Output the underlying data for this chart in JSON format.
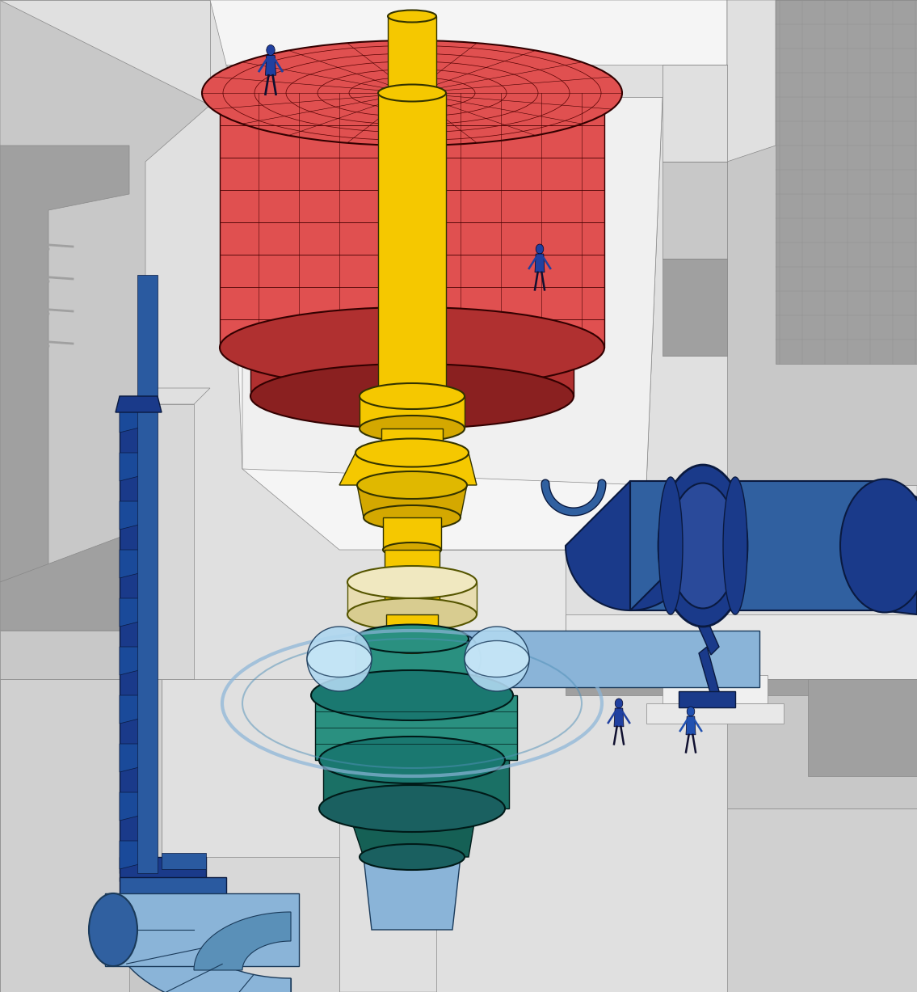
{
  "bg_color": "#ffffff",
  "wall_color": "#c8c8c8",
  "wall_dark": "#a0a0a0",
  "wall_light": "#e0e0e0",
  "wall_edge": "#888888",
  "generator_color": "#e05050",
  "generator_dark": "#b03030",
  "shaft_color": "#f5c800",
  "shaft_dark": "#d4a800",
  "turbine_color": "#2a9080",
  "turbine_dark": "#1a6060",
  "pipe_color": "#1a3a8a",
  "pipe_light": "#8ab4d8",
  "pipe_medium": "#3060a0",
  "crane_color": "#1a3a8a",
  "person_color": "#2040a0",
  "figure_size": [
    11.35,
    12.27
  ],
  "dpi": 100
}
